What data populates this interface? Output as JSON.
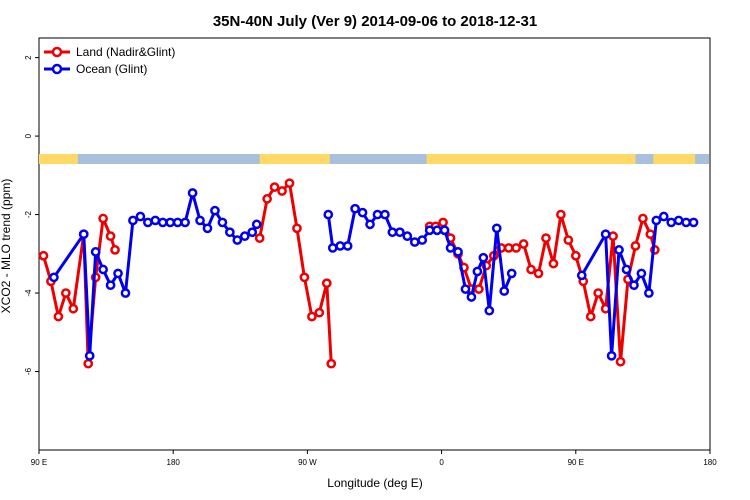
{
  "chart_data": {
    "type": "line",
    "title": "35N-40N July (Ver 9)   2014-09-06 to 2018-12-31",
    "xlabel": "Longitude (deg E)",
    "ylabel": "XCO2 - MLO trend (ppm)",
    "x_ticks": [
      {
        "pos": 0,
        "label": "90 E"
      },
      {
        "pos": 90,
        "label": "180"
      },
      {
        "pos": 180,
        "label": "90 W"
      },
      {
        "pos": 270,
        "label": "0"
      },
      {
        "pos": 360,
        "label": "90 E"
      },
      {
        "pos": 450,
        "label": "180"
      }
    ],
    "y_ticks": [
      2,
      0,
      -2,
      -4,
      -6
    ],
    "xlim": [
      0,
      450
    ],
    "ylim": [
      -8,
      2.5
    ],
    "land_sea_strip": {
      "land_color": "#ffd966",
      "ocean_color": "#a9c0dc",
      "land_spans": [
        [
          0,
          26
        ],
        [
          148,
          195
        ],
        [
          260,
          400
        ],
        [
          412,
          440
        ]
      ]
    },
    "series": [
      {
        "name": "Land (Nadir&Glint)",
        "color": "#ee0000",
        "points": [
          [
            3,
            -3.05
          ],
          [
            8,
            -3.7
          ],
          [
            13,
            -4.6
          ],
          [
            18,
            -4.0
          ],
          [
            23,
            -4.4
          ],
          [
            30,
            -2.5
          ],
          [
            33,
            -5.8
          ],
          [
            38,
            -3.6
          ],
          [
            43,
            -2.1
          ],
          [
            48,
            -2.55
          ],
          [
            51,
            -2.9
          ],
          null,
          [
            148,
            -2.6
          ],
          [
            153,
            -1.6
          ],
          [
            158,
            -1.3
          ],
          [
            163,
            -1.4
          ],
          [
            168,
            -1.2
          ],
          [
            173,
            -2.35
          ],
          [
            178,
            -3.6
          ],
          [
            183,
            -4.6
          ],
          [
            188,
            -4.5
          ],
          [
            193,
            -3.75
          ],
          [
            196,
            -5.8
          ],
          null,
          [
            262,
            -2.3
          ],
          [
            266,
            -2.3
          ],
          [
            271,
            -2.2
          ],
          [
            276,
            -2.6
          ],
          [
            281,
            -3.0
          ],
          [
            285,
            -3.35
          ],
          [
            290,
            -3.9
          ],
          [
            295,
            -3.9
          ],
          [
            300,
            -3.3
          ],
          [
            305,
            -3.05
          ],
          [
            310,
            -2.85
          ],
          [
            315,
            -2.85
          ],
          [
            320,
            -2.85
          ],
          [
            325,
            -2.75
          ],
          [
            330,
            -3.4
          ],
          [
            335,
            -3.5
          ],
          [
            340,
            -2.6
          ],
          [
            345,
            -3.25
          ],
          [
            350,
            -2.0
          ],
          [
            355,
            -2.65
          ],
          [
            360,
            -3.05
          ],
          [
            365,
            -3.7
          ],
          [
            370,
            -4.6
          ],
          [
            375,
            -4.0
          ],
          [
            380,
            -4.4
          ],
          [
            385,
            -2.55
          ],
          [
            390,
            -5.75
          ],
          [
            395,
            -3.65
          ],
          [
            400,
            -2.8
          ],
          [
            405,
            -2.1
          ],
          [
            410,
            -2.5
          ],
          [
            413,
            -2.9
          ]
        ]
      },
      {
        "name": "Ocean (Glint)",
        "color": "#0000ee",
        "points": [
          [
            10,
            -3.6
          ],
          [
            30,
            -2.5
          ],
          [
            34,
            -5.6
          ],
          [
            38,
            -2.95
          ],
          [
            43,
            -3.4
          ],
          [
            48,
            -3.8
          ],
          [
            53,
            -3.5
          ],
          [
            58,
            -4.0
          ],
          [
            63,
            -2.15
          ],
          [
            68,
            -2.05
          ],
          [
            73,
            -2.2
          ],
          [
            78,
            -2.15
          ],
          [
            83,
            -2.2
          ],
          [
            88,
            -2.2
          ],
          [
            93,
            -2.2
          ],
          [
            98,
            -2.2
          ],
          [
            103,
            -1.45
          ],
          [
            108,
            -2.15
          ],
          [
            113,
            -2.35
          ],
          [
            118,
            -1.9
          ],
          [
            123,
            -2.2
          ],
          [
            128,
            -2.45
          ],
          [
            133,
            -2.65
          ],
          [
            138,
            -2.55
          ],
          [
            143,
            -2.45
          ],
          [
            146,
            -2.25
          ],
          null,
          [
            194,
            -2.0
          ],
          [
            197,
            -2.85
          ],
          [
            202,
            -2.8
          ],
          [
            207,
            -2.8
          ],
          [
            212,
            -1.85
          ],
          [
            217,
            -1.95
          ],
          [
            222,
            -2.25
          ],
          [
            227,
            -2.0
          ],
          [
            232,
            -2.0
          ],
          [
            237,
            -2.45
          ],
          [
            242,
            -2.45
          ],
          [
            247,
            -2.55
          ],
          [
            252,
            -2.7
          ],
          [
            257,
            -2.65
          ],
          [
            262,
            -2.4
          ],
          [
            267,
            -2.4
          ],
          [
            272,
            -2.4
          ],
          [
            276,
            -2.85
          ],
          [
            281,
            -2.95
          ],
          [
            286,
            -3.9
          ],
          [
            290,
            -4.1
          ],
          [
            294,
            -3.45
          ],
          [
            298,
            -3.1
          ],
          [
            302,
            -4.45
          ],
          [
            307,
            -2.35
          ],
          [
            312,
            -3.95
          ],
          [
            317,
            -3.5
          ],
          null,
          [
            364,
            -3.55
          ],
          [
            380,
            -2.5
          ],
          [
            384,
            -5.6
          ],
          [
            389,
            -2.9
          ],
          [
            394,
            -3.4
          ],
          [
            399,
            -3.8
          ],
          [
            404,
            -3.5
          ],
          [
            409,
            -4.0
          ],
          [
            414,
            -2.15
          ],
          [
            419,
            -2.05
          ],
          [
            424,
            -2.2
          ],
          [
            429,
            -2.15
          ],
          [
            434,
            -2.2
          ],
          [
            439,
            -2.2
          ]
        ]
      }
    ],
    "legend": "top-left"
  }
}
